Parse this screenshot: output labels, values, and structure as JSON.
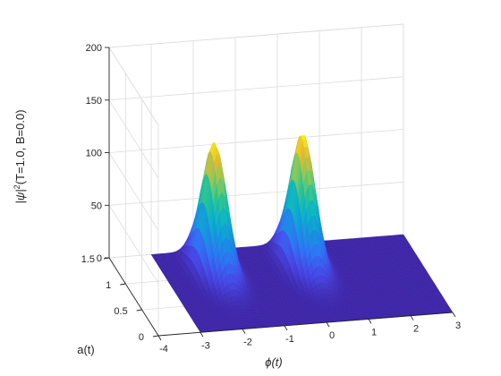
{
  "chart_data": {
    "type": "surface",
    "title": "",
    "xlabel": "ϕ(t)",
    "ylabel": "a(t)",
    "zlabel_prefix": "|ψ|",
    "zlabel_sup": "2",
    "zlabel_suffix": "(T=1.0, B=0.0)",
    "xlim": [
      -4,
      3
    ],
    "ylim": [
      0,
      1.5
    ],
    "zlim": [
      0,
      200
    ],
    "xticks": [
      "-4",
      "-3",
      "-2",
      "-1",
      "0",
      "1",
      "2",
      "3"
    ],
    "yticks": [
      "0",
      "0.5",
      "1",
      "1.5"
    ],
    "zticks": [
      "0",
      "50",
      "100",
      "150",
      "200"
    ],
    "grid": true,
    "colormap": "parula",
    "peaks": [
      {
        "phi": -1.8,
        "a": 1.1,
        "height": 122
      },
      {
        "phi": 0.3,
        "a": 1.1,
        "height": 124
      }
    ]
  }
}
